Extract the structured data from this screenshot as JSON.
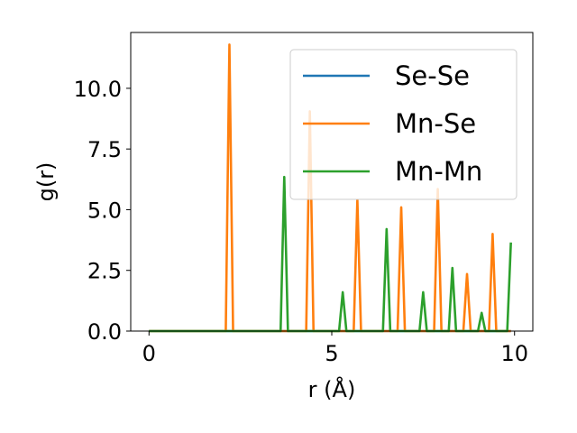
{
  "chart_data": {
    "type": "line",
    "xlabel": "r (Å)",
    "ylabel": "g(r)",
    "xlim": [
      -0.5,
      10.5
    ],
    "ylim": [
      0.0,
      12.3
    ],
    "xticks": [
      0,
      5,
      10
    ],
    "xtick_labels": [
      "0",
      "5",
      "10"
    ],
    "yticks": [
      0.0,
      2.5,
      5.0,
      7.5,
      10.0
    ],
    "ytick_labels": [
      "0.0",
      "2.5",
      "5.0",
      "7.5",
      "10.0"
    ],
    "grid": false,
    "legend_position": "upper-right",
    "series": [
      {
        "name": "Se-Se",
        "color": "#1f77b4",
        "x": [
          0.0,
          9.9
        ],
        "y": [
          0.0,
          0.0
        ]
      },
      {
        "name": "Mn-Se",
        "color": "#ff7f0e",
        "x": [
          0.0,
          2.1,
          2.2,
          2.3,
          4.3,
          4.4,
          4.5,
          5.6,
          5.7,
          5.8,
          6.8,
          6.9,
          7.0,
          7.8,
          7.9,
          8.0,
          8.6,
          8.7,
          8.8,
          9.3,
          9.4,
          9.5,
          9.9
        ],
        "y": [
          0.0,
          0.0,
          11.8,
          0.0,
          0.0,
          9.05,
          0.0,
          0.0,
          5.4,
          0.0,
          0.0,
          5.1,
          0.0,
          0.0,
          5.85,
          0.0,
          0.0,
          2.35,
          0.0,
          0.0,
          4.0,
          0.0,
          0.0
        ]
      },
      {
        "name": "Mn-Mn",
        "color": "#2ca02c",
        "x": [
          0.0,
          3.6,
          3.7,
          3.8,
          5.2,
          5.3,
          5.4,
          6.4,
          6.5,
          6.6,
          7.4,
          7.5,
          7.6,
          8.2,
          8.3,
          8.4,
          9.0,
          9.1,
          9.2,
          9.8,
          9.9
        ],
        "y": [
          0.0,
          0.0,
          6.35,
          0.0,
          0.0,
          1.6,
          0.0,
          0.0,
          4.2,
          0.0,
          0.0,
          1.6,
          0.0,
          0.0,
          2.6,
          0.0,
          0.0,
          0.75,
          0.0,
          0.0,
          3.65
        ]
      }
    ]
  }
}
